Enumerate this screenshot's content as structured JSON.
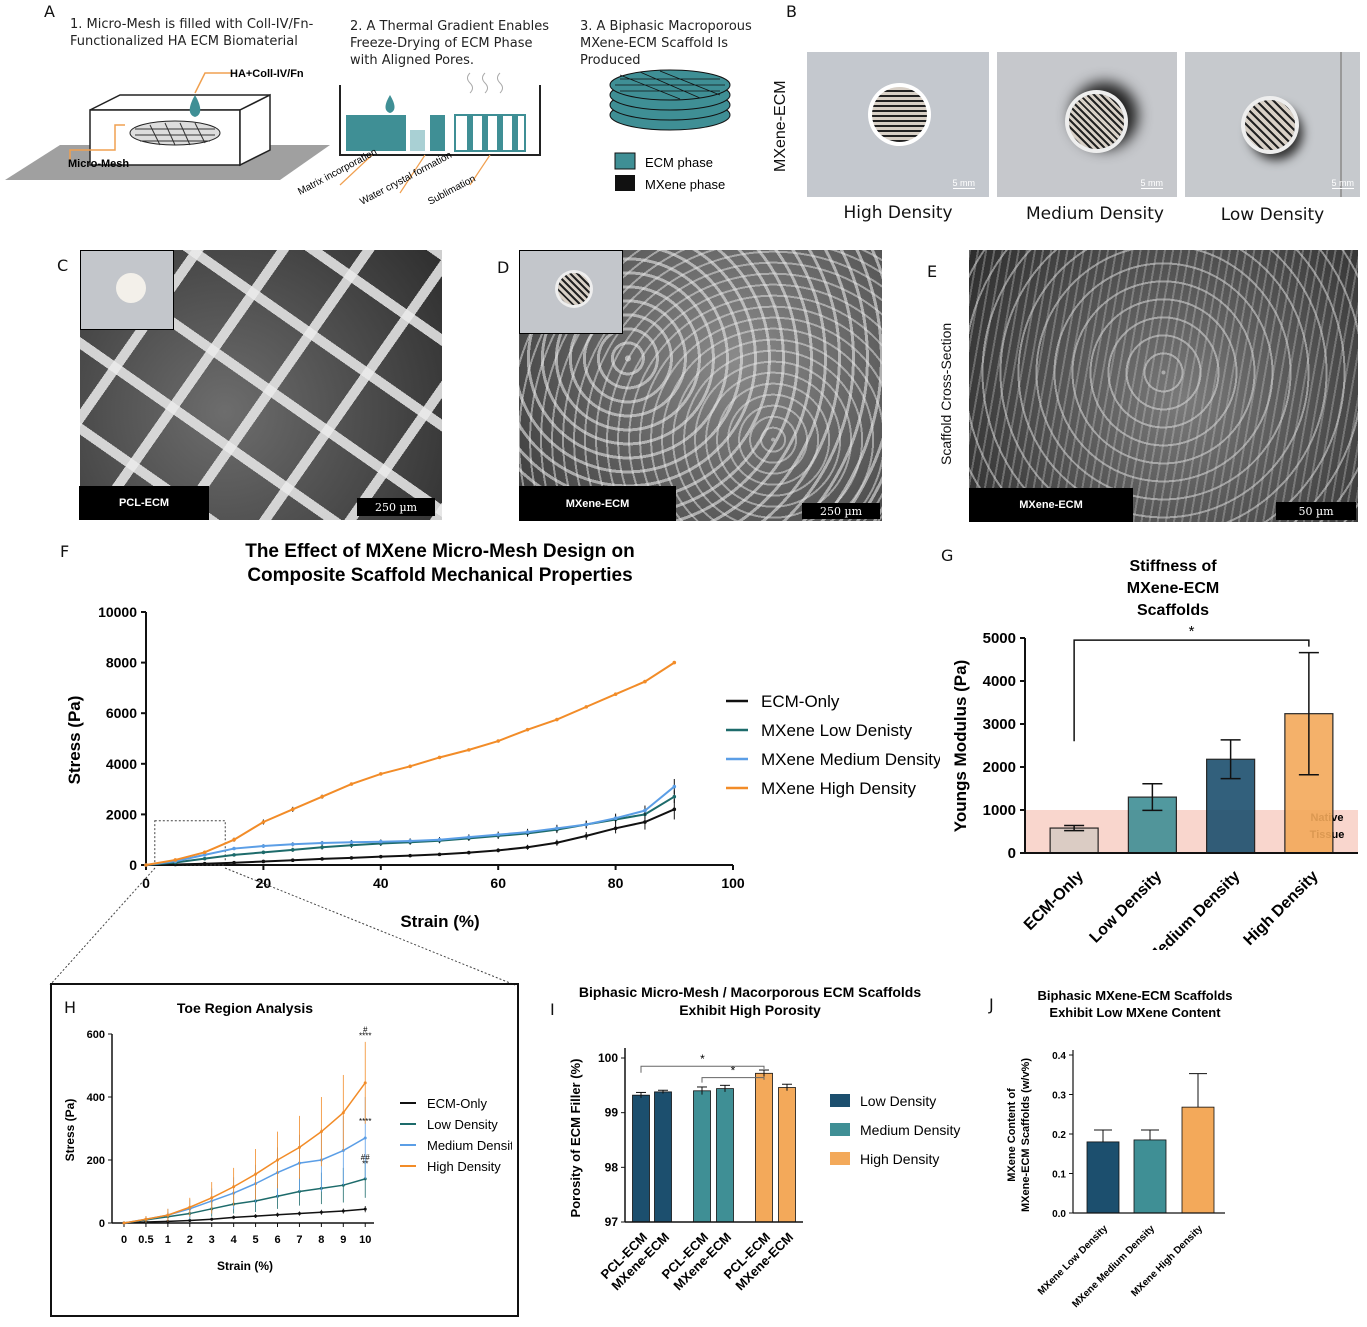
{
  "panel_letters": {
    "A": "A",
    "B": "B",
    "C": "C",
    "D": "D",
    "E": "E",
    "F": "F",
    "G": "G",
    "H": "H",
    "I": "I",
    "J": "J"
  },
  "panel_a": {
    "step1": "1. Micro-Mesh is filled with Coll-IV/Fn-Functionalized HA ECM Biomaterial",
    "step2": "2. A Thermal Gradient Enables Freeze-Drying of ECM Phase with Aligned Pores.",
    "step3": "3. A Biphasic Macroporous MXene-ECM Scaffold Is Produced",
    "ha_label": "HA+Coll-IV/Fn",
    "mesh_label": "Micro-Mesh",
    "matrix_label": "Matrix incorporation",
    "water_label": "Water crystal formation",
    "sublimation_label": "Sublimation",
    "legend_ecm": "ECM phase",
    "legend_mxene": "MXene phase",
    "colors": {
      "ecm": "#3f8f95",
      "mxene": "#111111",
      "orange": "#f0a050"
    }
  },
  "panel_b": {
    "side_label": "MXene-ECM",
    "scale": "5 mm",
    "labels": [
      "High Density",
      "Medium Density",
      "Low Density"
    ]
  },
  "panel_c": {
    "tag": "PCL-ECM",
    "scale": "250 µm"
  },
  "panel_d": {
    "tag": "MXene-ECM",
    "scale": "250 µm"
  },
  "panel_e": {
    "side_label": "Scaffold Cross-Section",
    "tag": "MXene-ECM",
    "scale": "50 µm"
  },
  "chart_data": [
    {
      "id": "F",
      "type": "line",
      "title": "The Effect of MXene Micro-Mesh Design on Composite Scaffold Mechanical Properties",
      "xlabel": "Strain (%)",
      "ylabel": "Stress (Pa)",
      "xlim": [
        0,
        100
      ],
      "ylim": [
        0,
        10000
      ],
      "xticks": [
        0,
        20,
        40,
        60,
        80,
        100
      ],
      "yticks": [
        0,
        2000,
        4000,
        6000,
        8000,
        10000
      ],
      "legend_position": "right",
      "series": [
        {
          "name": "ECM-Only",
          "color": "#111111",
          "x": [
            0,
            5,
            10,
            15,
            20,
            25,
            30,
            35,
            40,
            45,
            50,
            55,
            60,
            65,
            70,
            75,
            80,
            85,
            90
          ],
          "y": [
            0,
            20,
            50,
            90,
            140,
            190,
            240,
            280,
            330,
            370,
            420,
            490,
            580,
            700,
            880,
            1150,
            1450,
            1700,
            2200
          ],
          "err": [
            10,
            10,
            20,
            20,
            30,
            30,
            40,
            40,
            50,
            50,
            60,
            60,
            80,
            100,
            120,
            150,
            200,
            300,
            400
          ]
        },
        {
          "name": "MXene Low Denisty",
          "color": "#1d6b6b",
          "x": [
            0,
            5,
            10,
            15,
            20,
            25,
            30,
            35,
            40,
            45,
            50,
            55,
            60,
            65,
            70,
            75,
            80,
            85,
            90
          ],
          "y": [
            0,
            100,
            250,
            400,
            500,
            600,
            700,
            780,
            850,
            900,
            960,
            1050,
            1150,
            1250,
            1400,
            1600,
            1800,
            2000,
            2700
          ],
          "err": [
            20,
            30,
            50,
            60,
            70,
            80,
            90,
            100,
            100,
            100,
            100,
            100,
            120,
            130,
            140,
            150,
            160,
            180,
            250
          ]
        },
        {
          "name": "MXene Medium Density",
          "color": "#5b9ee6",
          "x": [
            0,
            5,
            10,
            15,
            20,
            25,
            30,
            35,
            40,
            45,
            50,
            55,
            60,
            65,
            70,
            75,
            80,
            85,
            90
          ],
          "y": [
            0,
            150,
            400,
            650,
            750,
            820,
            870,
            900,
            920,
            950,
            1000,
            1100,
            1200,
            1300,
            1450,
            1600,
            1850,
            2150,
            3100
          ],
          "err": [
            20,
            30,
            50,
            60,
            70,
            80,
            80,
            90,
            90,
            100,
            100,
            110,
            120,
            130,
            140,
            150,
            180,
            200,
            300
          ]
        },
        {
          "name": "MXene High Density",
          "color": "#f28c28",
          "x": [
            0,
            5,
            10,
            15,
            20,
            25,
            30,
            35,
            40,
            45,
            50,
            55,
            60,
            65,
            70,
            75,
            80,
            85,
            90
          ],
          "y": [
            0,
            200,
            500,
            1000,
            1700,
            2200,
            2700,
            3200,
            3600,
            3900,
            4250,
            4550,
            4900,
            5350,
            5750,
            6250,
            6750,
            7250,
            8000
          ],
          "err": [
            20,
            40,
            60,
            80,
            100,
            100,
            80,
            60,
            60,
            50,
            50,
            50,
            50,
            40,
            40,
            40,
            40,
            40,
            50
          ]
        }
      ]
    },
    {
      "id": "G",
      "type": "bar",
      "title": "Stiffness of MXene-ECM Scaffolds",
      "ylabel": "Youngs Modulus (Pa)",
      "ylim": [
        0,
        5000
      ],
      "yticks": [
        0,
        1000,
        2000,
        3000,
        4000,
        5000
      ],
      "categories": [
        "ECM-Only",
        "Low Density",
        "Medium Density",
        "High Density"
      ],
      "values": [
        580,
        1300,
        2180,
        3240
      ],
      "errors": [
        60,
        310,
        450,
        1420
      ],
      "colors": [
        "#d8cbc4",
        "#3f8f95",
        "#1c4f6e",
        "#f3a95a"
      ],
      "native_band": [
        0,
        1000
      ],
      "native_label": "Native Tissue",
      "significance": [
        {
          "from": "ECM-Only",
          "to": "High Density",
          "label": "*"
        }
      ]
    },
    {
      "id": "H",
      "type": "line",
      "title": "Toe Region Analysis",
      "xlabel": "Strain (%)",
      "ylabel": "Stress (Pa)",
      "ylim": [
        0,
        600
      ],
      "yticks": [
        0,
        200,
        400,
        600
      ],
      "categories": [
        "0",
        "0.5",
        "1",
        "2",
        "3",
        "4",
        "5",
        "6",
        "7",
        "8",
        "9",
        "10"
      ],
      "legend_position": "right",
      "series": [
        {
          "name": "ECM-Only",
          "color": "#111111",
          "values": [
            0,
            3,
            5,
            8,
            12,
            18,
            22,
            26,
            30,
            34,
            38,
            44
          ],
          "err": [
            2,
            3,
            4,
            5,
            5,
            6,
            6,
            7,
            7,
            8,
            8,
            10
          ]
        },
        {
          "name": "Low Density",
          "color": "#1d6b6b",
          "values": [
            0,
            10,
            20,
            30,
            45,
            60,
            70,
            85,
            100,
            110,
            120,
            140
          ],
          "err": [
            5,
            10,
            15,
            20,
            25,
            30,
            35,
            40,
            45,
            50,
            55,
            60
          ]
        },
        {
          "name": "Medium Density",
          "color": "#5b9ee6",
          "values": [
            0,
            12,
            25,
            45,
            70,
            95,
            125,
            160,
            190,
            200,
            230,
            270
          ],
          "err": [
            5,
            10,
            20,
            30,
            40,
            50,
            60,
            80,
            90,
            100,
            110,
            130
          ]
        },
        {
          "name": "High Density",
          "color": "#f28c28",
          "values": [
            0,
            12,
            25,
            50,
            80,
            115,
            155,
            200,
            240,
            290,
            350,
            445
          ],
          "err": [
            5,
            10,
            20,
            30,
            50,
            60,
            80,
            90,
            100,
            110,
            120,
            130
          ]
        }
      ],
      "annotations": [
        "#",
        "****",
        "****",
        "##",
        "**"
      ]
    },
    {
      "id": "I",
      "type": "bar",
      "title": "Biphasic Micro-Mesh / Macorporous ECM Scaffolds Exhibit High Porosity",
      "ylabel": "Porosity of ECM Filler (%)",
      "ylim": [
        97,
        100
      ],
      "yticks": [
        97,
        98,
        99,
        100
      ],
      "categories": [
        "PCL-ECM",
        "MXene-ECM",
        "PCL-ECM",
        "MXene-ECM",
        "PCL-ECM",
        "MXene-ECM"
      ],
      "values": [
        99.32,
        99.38,
        99.4,
        99.44,
        99.72,
        99.46
      ],
      "errors": [
        0.05,
        0.03,
        0.07,
        0.06,
        0.06,
        0.06
      ],
      "series_legend": [
        {
          "name": "Low Density",
          "color": "#1c4f6e"
        },
        {
          "name": "Medium Density",
          "color": "#3f8f95"
        },
        {
          "name": "High Density",
          "color": "#f3a95a"
        }
      ],
      "bar_groups": [
        0,
        0,
        1,
        1,
        2,
        2
      ],
      "significance": [
        {
          "from": 0,
          "to": 4,
          "label": "*"
        },
        {
          "from": 2,
          "to": 4,
          "label": "*"
        }
      ]
    },
    {
      "id": "J",
      "type": "bar",
      "title": "Biphasic MXene-ECM Scaffolds Exhibit Low MXene Content",
      "ylabel": "MXene Content of MXene-ECM Scaffolds (w/v%)",
      "ylim": [
        0,
        0.4
      ],
      "yticks": [
        0.0,
        0.1,
        0.2,
        0.3,
        0.4
      ],
      "categories": [
        "MXene Low Density",
        "MXene Medium Density",
        "MXene High Density"
      ],
      "values": [
        0.18,
        0.185,
        0.268
      ],
      "errors": [
        0.03,
        0.025,
        0.085
      ],
      "colors": [
        "#1c4f6e",
        "#3f8f95",
        "#f3a95a"
      ]
    }
  ]
}
